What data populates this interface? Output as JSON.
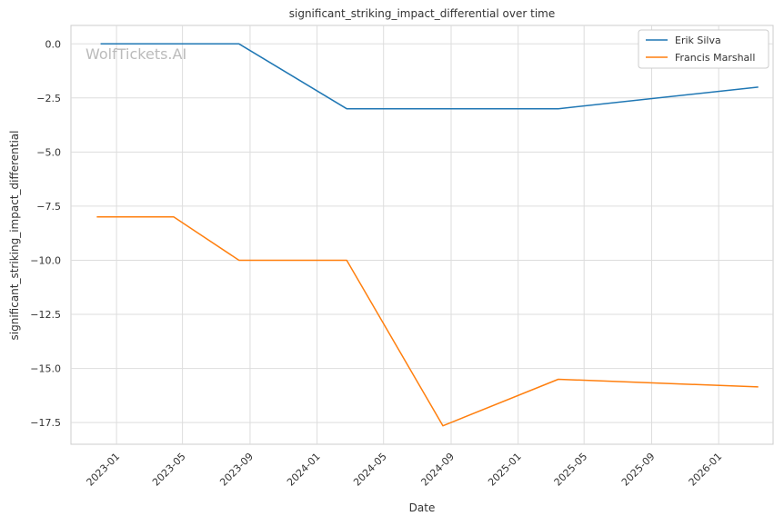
{
  "chart_data": {
    "type": "line",
    "title": "significant_striking_impact_differential over time",
    "xlabel": "Date",
    "ylabel": "significant_striking_impact_differential",
    "watermark": "WolfTickets.AI",
    "xlim": [
      "2022-10-10",
      "2026-04-10"
    ],
    "ylim": [
      -18.5,
      0.85
    ],
    "x_ticks": [
      "2023-01",
      "2023-05",
      "2023-09",
      "2024-01",
      "2024-05",
      "2024-09",
      "2025-01",
      "2025-05",
      "2025-09",
      "2026-01"
    ],
    "y_ticks": [
      0.0,
      -2.5,
      -5.0,
      -7.5,
      -10.0,
      -12.5,
      -15.0,
      -17.5
    ],
    "y_tick_labels": [
      "0.0",
      "−2.5",
      "−5.0",
      "−7.5",
      "−10.0",
      "−12.5",
      "−15.0",
      "−17.5"
    ],
    "grid": true,
    "legend_position": "top-right",
    "series": [
      {
        "name": "Erik Silva",
        "color": "#1f77b4",
        "points": [
          {
            "x": "2022-12-03",
            "y": 0.0
          },
          {
            "x": "2023-08-12",
            "y": 0.0
          },
          {
            "x": "2024-02-24",
            "y": -3.0
          },
          {
            "x": "2025-03-15",
            "y": -3.0
          },
          {
            "x": "2026-03-14",
            "y": -2.0
          }
        ]
      },
      {
        "name": "Francis Marshall",
        "color": "#ff7f0e",
        "points": [
          {
            "x": "2022-11-26",
            "y": -8.0
          },
          {
            "x": "2023-04-15",
            "y": -8.0
          },
          {
            "x": "2023-08-12",
            "y": -10.0
          },
          {
            "x": "2024-02-24",
            "y": -10.0
          },
          {
            "x": "2024-08-17",
            "y": -17.65
          },
          {
            "x": "2025-03-15",
            "y": -15.5
          },
          {
            "x": "2026-03-14",
            "y": -15.85
          }
        ]
      }
    ]
  }
}
